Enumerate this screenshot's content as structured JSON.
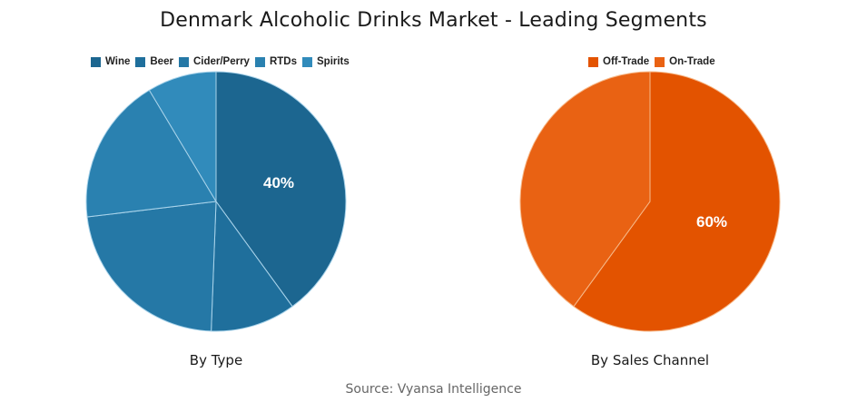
{
  "title": "Denmark Alcoholic Drinks Market - Leading Segments",
  "source": "Source: Vyansa Intelligence",
  "chart_data": [
    {
      "type": "pie",
      "title": "By Type",
      "categories": [
        "Wine",
        "Beer",
        "Cider/Perry",
        "RTDs",
        "Spirits"
      ],
      "values": [
        40,
        10.6,
        22.5,
        18.3,
        8.6
      ],
      "colors": [
        "#1c6690",
        "#1f6f9c",
        "#2578a6",
        "#2a81b0",
        "#318bbb"
      ],
      "data_labels": [
        "40%",
        "",
        "",
        "",
        ""
      ],
      "legend_position": "top"
    },
    {
      "type": "pie",
      "title": "By Sales Channel",
      "categories": [
        "Off-Trade",
        "On-Trade"
      ],
      "values": [
        60,
        40
      ],
      "colors": [
        "#e35300",
        "#e96213"
      ],
      "data_labels": [
        "60%",
        ""
      ],
      "legend_position": "top"
    }
  ],
  "left": {
    "legend": [
      "Wine",
      "Beer",
      "Cider/Perry",
      "RTDs",
      "Spirits"
    ],
    "label": "40%",
    "caption": "By Type"
  },
  "right": {
    "legend": [
      "Off-Trade",
      "On-Trade"
    ],
    "label": "60%",
    "caption": "By Sales Channel"
  }
}
